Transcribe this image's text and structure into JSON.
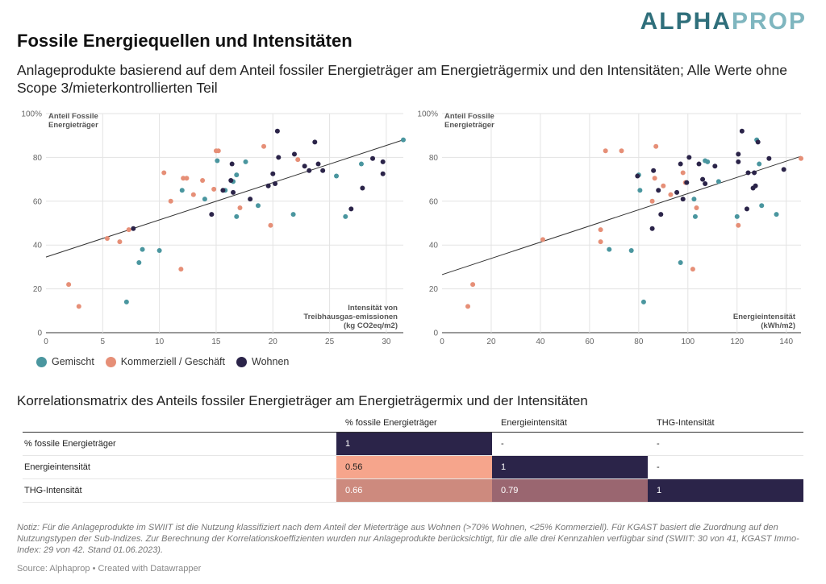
{
  "logo": {
    "part1": "ALPHA",
    "part2": "PROP"
  },
  "title": "Fossile Energiequellen und Intensitäten",
  "subtitle": "Anlageprodukte basierend auf dem Anteil fossiler Energieträger am Energieträgermix und den Intensitäten; Alle Werte ohne Scope 3/mieterkontrollierten Teil",
  "colors": {
    "Gemischt": "#4a969f",
    "Kommerziell / Geschäft": "#e68f77",
    "Wohnen": "#2b2449"
  },
  "legend": [
    {
      "label": "Gemischt",
      "color": "#4a969f"
    },
    {
      "label": "Kommerziell / Geschäft",
      "color": "#e68f77"
    },
    {
      "label": "Wohnen",
      "color": "#2b2449"
    }
  ],
  "chart_data": [
    {
      "type": "scatter",
      "ylabel": "Anteil Fossile Energieträger",
      "xlabel": "Intensität von Treibhausgas-emissionen (kg CO2eq/m2)",
      "xlim": [
        0,
        31.5
      ],
      "ylim": [
        0,
        100
      ],
      "xticks": [
        0,
        5,
        10,
        15,
        20,
        25,
        30
      ],
      "yticks": [
        0,
        20,
        40,
        60,
        80,
        100
      ],
      "ytick_labels": [
        "0",
        "20",
        "40",
        "60",
        "80",
        "100%"
      ],
      "trendline": {
        "x": [
          0,
          31.5
        ],
        "y": [
          34.5,
          88
        ]
      },
      "series": [
        {
          "name": "Gemischt",
          "points": [
            [
              7.1,
              14
            ],
            [
              8.2,
              32
            ],
            [
              8.5,
              38
            ],
            [
              10,
              37.5
            ],
            [
              12,
              65
            ],
            [
              14,
              61
            ],
            [
              15.1,
              78.5
            ],
            [
              15.8,
              65
            ],
            [
              16.5,
              69
            ],
            [
              16.8,
              72
            ],
            [
              16.8,
              53
            ],
            [
              17.6,
              78
            ],
            [
              18.7,
              58
            ],
            [
              21.8,
              54
            ],
            [
              25.6,
              71.5
            ],
            [
              26.4,
              53
            ],
            [
              27.8,
              77
            ],
            [
              31.5,
              88
            ]
          ]
        },
        {
          "name": "Kommerziell / Geschäft",
          "points": [
            [
              2,
              22
            ],
            [
              2.9,
              12
            ],
            [
              5.4,
              43
            ],
            [
              6.5,
              41.5
            ],
            [
              7.3,
              47
            ],
            [
              10.4,
              73
            ],
            [
              11,
              60
            ],
            [
              11.9,
              29
            ],
            [
              12.1,
              70.5
            ],
            [
              12.4,
              70.5
            ],
            [
              13,
              63
            ],
            [
              13.8,
              69.5
            ],
            [
              14.8,
              65.5
            ],
            [
              15,
              83
            ],
            [
              15.2,
              83
            ],
            [
              17.1,
              57
            ],
            [
              19.8,
              49
            ],
            [
              19.2,
              85
            ],
            [
              22.2,
              79
            ]
          ]
        },
        {
          "name": "Wohnen",
          "points": [
            [
              7.7,
              47.5
            ],
            [
              14.6,
              54
            ],
            [
              15.6,
              65
            ],
            [
              16.3,
              69.5
            ],
            [
              16.4,
              77
            ],
            [
              16.5,
              64
            ],
            [
              18,
              61
            ],
            [
              19.6,
              67
            ],
            [
              20.2,
              68
            ],
            [
              20.4,
              92
            ],
            [
              20,
              72.5
            ],
            [
              20.5,
              80
            ],
            [
              21.9,
              81.5
            ],
            [
              22.8,
              76
            ],
            [
              23.2,
              74
            ],
            [
              23.7,
              87
            ],
            [
              24,
              77
            ],
            [
              24.4,
              74
            ],
            [
              26.9,
              56.5
            ],
            [
              27.9,
              66
            ],
            [
              28.8,
              79.5
            ],
            [
              29.7,
              78
            ],
            [
              29.7,
              72.5
            ]
          ]
        }
      ]
    },
    {
      "type": "scatter",
      "ylabel": "Anteil Fossile Energieträger",
      "xlabel": "Energieintensität (kWh/m2)",
      "xlim": [
        0,
        146
      ],
      "ylim": [
        0,
        100
      ],
      "xticks": [
        0,
        20,
        40,
        60,
        80,
        100,
        120,
        140
      ],
      "yticks": [
        0,
        20,
        40,
        60,
        80,
        100
      ],
      "ytick_labels": [
        "0",
        "20",
        "40",
        "60",
        "80",
        "100%"
      ],
      "trendline": {
        "x": [
          0,
          146
        ],
        "y": [
          26.5,
          80.5
        ]
      },
      "series": [
        {
          "name": "Gemischt",
          "points": [
            [
              68,
              38
            ],
            [
              77,
              37.5
            ],
            [
              80,
              72
            ],
            [
              80.5,
              65
            ],
            [
              82,
              14
            ],
            [
              97,
              32
            ],
            [
              102.5,
              61
            ],
            [
              103,
              53
            ],
            [
              107,
              78.5
            ],
            [
              108,
              78
            ],
            [
              112.5,
              69
            ],
            [
              120,
              53
            ],
            [
              128,
              88
            ],
            [
              129,
              77
            ],
            [
              130,
              58
            ],
            [
              136,
              54
            ]
          ]
        },
        {
          "name": "Kommerziell / Geschäft",
          "points": [
            [
              10.5,
              12
            ],
            [
              12.5,
              22
            ],
            [
              41,
              42.5
            ],
            [
              64.5,
              47
            ],
            [
              64.5,
              41.5
            ],
            [
              66.5,
              83
            ],
            [
              73,
              83
            ],
            [
              85.5,
              60
            ],
            [
              86.5,
              70.5
            ],
            [
              87,
              85
            ],
            [
              90,
              67
            ],
            [
              93,
              63
            ],
            [
              98,
              73
            ],
            [
              99,
              68.5
            ],
            [
              102,
              29
            ],
            [
              103.5,
              57
            ],
            [
              120.5,
              49
            ],
            [
              146,
              79.5
            ]
          ]
        },
        {
          "name": "Wohnen",
          "points": [
            [
              79.5,
              71.5
            ],
            [
              86,
              74
            ],
            [
              85.5,
              47.5
            ],
            [
              88,
              65
            ],
            [
              89,
              54
            ],
            [
              95.5,
              64
            ],
            [
              97,
              77
            ],
            [
              98,
              61
            ],
            [
              99.5,
              68.5
            ],
            [
              100.5,
              80
            ],
            [
              104.5,
              77
            ],
            [
              106,
              70
            ],
            [
              107,
              68
            ],
            [
              111,
              76
            ],
            [
              120.5,
              81.5
            ],
            [
              120.5,
              78
            ],
            [
              122,
              92
            ],
            [
              124,
              56.5
            ],
            [
              124.5,
              73
            ],
            [
              126.5,
              66
            ],
            [
              127.5,
              67
            ],
            [
              127,
              73
            ],
            [
              128.5,
              87
            ],
            [
              133,
              79.5
            ],
            [
              139,
              74.5
            ]
          ]
        }
      ]
    }
  ],
  "matrix": {
    "title": "Korrelationsmatrix des Anteils fossiler Energieträger am Energieträgermix und der Intensitäten",
    "columns": [
      "",
      "% fossile Energieträger",
      "Energieintensität",
      "THG-Intensität"
    ],
    "rows": [
      {
        "label": "% fossile Energieträger",
        "cells": [
          "1",
          "-",
          "-"
        ]
      },
      {
        "label": "Energieintensität",
        "cells": [
          "0.56",
          "1",
          "-"
        ]
      },
      {
        "label": "THG-Intensität",
        "cells": [
          "0.66",
          "0.79",
          "1"
        ]
      }
    ]
  },
  "note": "Notiz: Für die Anlageprodukte im SWIIT ist die Nutzung klassifiziert nach dem Anteil der Mieterträge aus Wohnen (>70% Wohnen, <25% Kommerziell). Für KGAST basiert die Zuordnung auf den Nutzungstypen der Sub-Indizes. Zur Berechnung der Korrelationskoeffizienten wurden nur Anlageprodukte berücksichtigt, für die alle drei Kennzahlen verfügbar sind (SWIIT: 30 von 41, KGAST Immo-Index: 29 von 42. Stand 01.06.2023).",
  "source": "Source: Alphaprop • Created with Datawrapper"
}
